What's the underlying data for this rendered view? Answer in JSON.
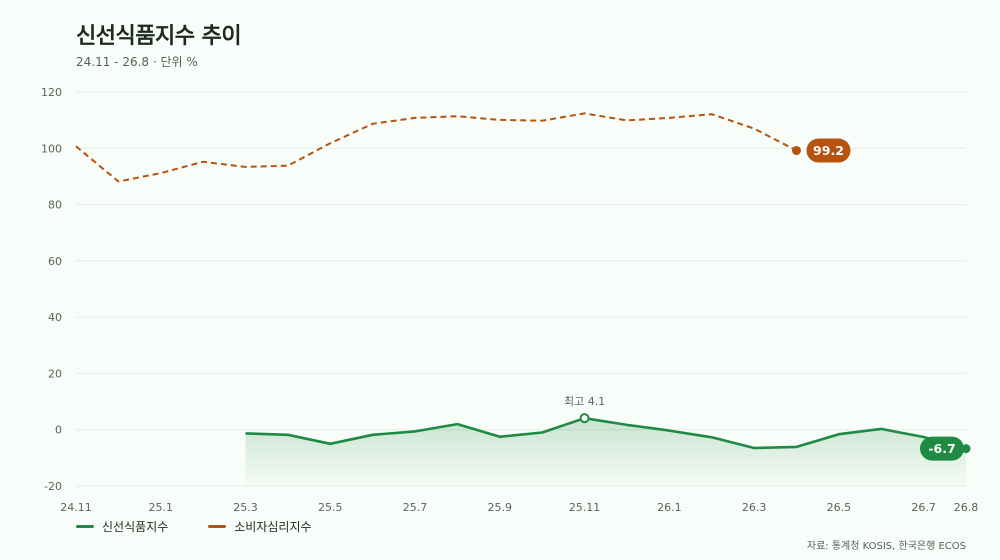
{
  "header": {
    "title": "신선식품지수 추이",
    "subtitle": "24.11 - 26.8 · 단위 %"
  },
  "colors": {
    "fresh": "#1e8a44",
    "consumer": "#b5530f",
    "grid": "#e3ebe4"
  },
  "chart_data": {
    "type": "line",
    "title": "신선식품지수 추이",
    "subtitle": "24.11 - 26.8 · 단위 %",
    "x": [
      "24.11",
      "24.12",
      "25.1",
      "25.2",
      "25.3",
      "25.4",
      "25.5",
      "25.6",
      "25.7",
      "25.8",
      "25.9",
      "25.10",
      "25.11",
      "25.12",
      "26.1",
      "26.2",
      "26.3",
      "26.4",
      "26.5",
      "26.6",
      "26.7",
      "26.8"
    ],
    "x_tick_labels": [
      "24.11",
      "25.1",
      "25.3",
      "25.5",
      "25.7",
      "25.9",
      "25.11",
      "26.1",
      "26.3",
      "26.5",
      "26.7",
      "26.8"
    ],
    "ylim": [
      -20,
      120
    ],
    "y_ticks": [
      -20,
      0,
      20,
      40,
      60,
      80,
      100,
      120
    ],
    "grid": true,
    "legend_position": "bottom-left",
    "series": [
      {
        "name": "신선식품지수",
        "style": "solid-area",
        "values": [
          null,
          null,
          null,
          null,
          -1.3,
          -1.8,
          -5.0,
          -1.8,
          -0.6,
          2.0,
          -2.5,
          -1.0,
          4.1,
          1.7,
          -0.3,
          -2.7,
          -6.5,
          -6.1,
          -1.6,
          0.3,
          -2.6,
          -6.7
        ],
        "end_label": "-6.7",
        "annotation": {
          "x": "25.11",
          "text": "최고 4.1"
        }
      },
      {
        "name": "소비자심리지수",
        "style": "dashed",
        "values": [
          100.7,
          88.2,
          91.2,
          95.2,
          93.4,
          93.8,
          101.8,
          108.7,
          110.8,
          111.4,
          110.1,
          109.8,
          112.4,
          109.9,
          110.8,
          112.1,
          107.0,
          99.2,
          null,
          null,
          null,
          null
        ],
        "end_label": "99.2"
      }
    ]
  },
  "legend": [
    {
      "name": "신선식품지수"
    },
    {
      "name": "소비자심리지수"
    }
  ],
  "source": "자료: 통계청 KOSIS, 한국은행 ECOS"
}
